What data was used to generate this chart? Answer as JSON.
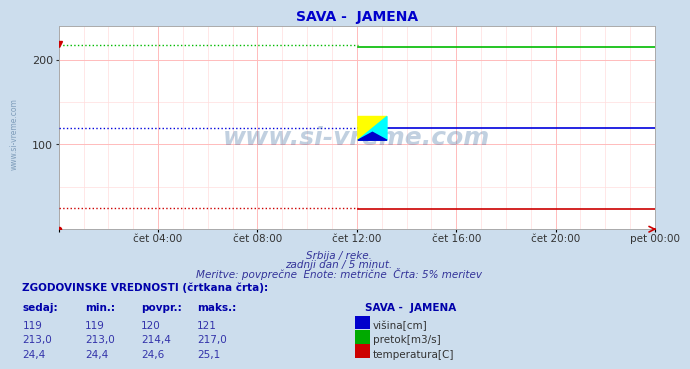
{
  "title": "SAVA -  JAMENA",
  "title_color": "#0000cc",
  "bg_color": "#ccdded",
  "plot_bg_color": "#ffffff",
  "grid_color_major": "#ffbbbb",
  "grid_color_minor": "#ffdddd",
  "watermark": "www.si-vreme.com",
  "subtitle1": "Srbija / reke.",
  "subtitle2": "zadnji dan / 5 minut.",
  "subtitle3": "Meritve: povprečne  Enote: metrične  Črta: 5% meritev",
  "xlabel_ticks": [
    "čet 04:00",
    "čet 08:00",
    "čet 12:00",
    "čet 16:00",
    "čet 20:00",
    "pet 00:00"
  ],
  "ylim": [
    0,
    240
  ],
  "yticks": [
    100,
    200
  ],
  "n_points": 288,
  "transition": 144,
  "visina_solid": 119,
  "visina_dot": 120,
  "pretok_solid": 214.4,
  "pretok_dot": 217.0,
  "temp_solid": 24.4,
  "temp_dot": 24.6,
  "line_visina_color": "#0000dd",
  "line_pretok_color": "#00bb00",
  "line_temp_color": "#cc0000",
  "table_header": "ZGODOVINSKE VREDNOSTI (črtkana črta):",
  "col_headers": [
    "sedaj:",
    "min.:",
    "povpr.:",
    "maks.:"
  ],
  "row_visina": [
    "119",
    "119",
    "120",
    "121"
  ],
  "row_pretok": [
    "213,0",
    "213,0",
    "214,4",
    "217,0"
  ],
  "row_temp": [
    "24,4",
    "24,4",
    "24,6",
    "25,1"
  ],
  "legend_station": "SAVA -  JAMENA",
  "legend_labels": [
    "višina[cm]",
    "pretok[m3/s]",
    "temperatura[C]"
  ],
  "legend_colors": [
    "#0000cc",
    "#00aa00",
    "#cc0000"
  ]
}
